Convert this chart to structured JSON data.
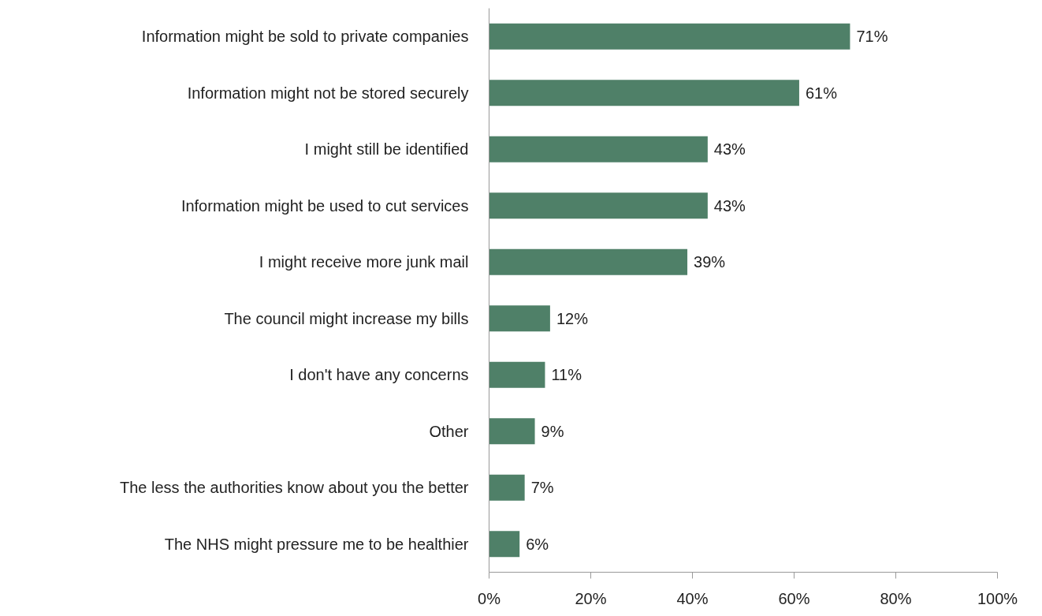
{
  "chart_data": {
    "type": "bar",
    "orientation": "horizontal",
    "categories": [
      "Information might be sold to private companies",
      "Information might not be stored securely",
      "I might still be identified",
      "Information might be used to cut services",
      "I might receive more junk mail",
      "The council might increase my bills",
      "I don't have any concerns",
      "Other",
      "The less the authorities know about you the better",
      "The NHS might pressure me to be healthier"
    ],
    "values": [
      71,
      61,
      43,
      43,
      39,
      12,
      11,
      9,
      7,
      6
    ],
    "value_labels": [
      "71%",
      "61%",
      "43%",
      "43%",
      "39%",
      "12%",
      "11%",
      "9%",
      "7%",
      "6%"
    ],
    "color": "#4f8068",
    "xlim": [
      0,
      100
    ],
    "xticks": [
      {
        "value": 0,
        "label": "0%"
      },
      {
        "value": 20,
        "label": "20%"
      },
      {
        "value": 40,
        "label": "40%"
      },
      {
        "value": 60,
        "label": "60%"
      },
      {
        "value": 80,
        "label": "80%"
      },
      {
        "value": 100,
        "label": "100%"
      }
    ],
    "grid": false
  }
}
